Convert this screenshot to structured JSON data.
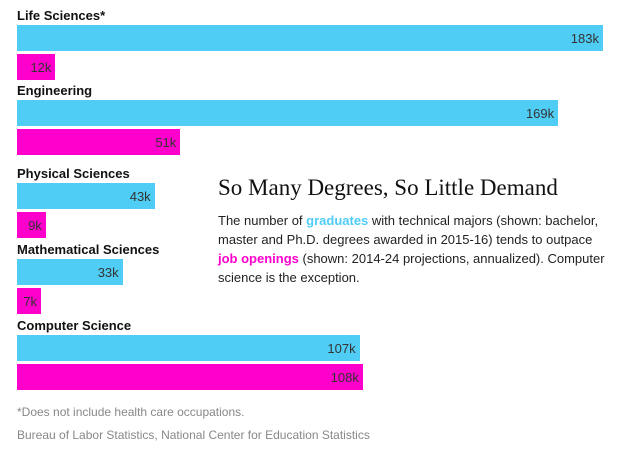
{
  "chart_data": {
    "type": "bar",
    "orientation": "horizontal",
    "categories": [
      "Life Sciences*",
      "Engineering",
      "Physical Sciences",
      "Mathematical Sciences",
      "Computer Science"
    ],
    "series": [
      {
        "name": "graduates",
        "values": [
          183,
          169,
          43,
          33,
          107
        ],
        "labels": [
          "183k",
          "169k",
          "43k",
          "33k",
          "107k"
        ],
        "color": "#4fcdf5"
      },
      {
        "name": "job openings",
        "values": [
          12,
          51,
          9,
          7,
          108
        ],
        "labels": [
          "12k",
          "51k",
          "9k",
          "7k",
          "108k"
        ],
        "color": "#ff00cc"
      }
    ],
    "title": "So Many Degrees, So Little Demand",
    "description": {
      "part1": "The number of ",
      "graduates": "graduates",
      "part2": " with technical majors (shown: bachelor, master and Ph.D. degrees awarded in 2015-16) tends to outpace ",
      "job_openings": "job openings",
      "part3": " (shown: 2014-24 projections, annualized). Computer science is the exception."
    },
    "xlim": [
      0,
      183
    ],
    "footnote": "*Does not include health care occupations.",
    "source": "Bureau of Labor Statistics, National Center for Education Statistics"
  }
}
